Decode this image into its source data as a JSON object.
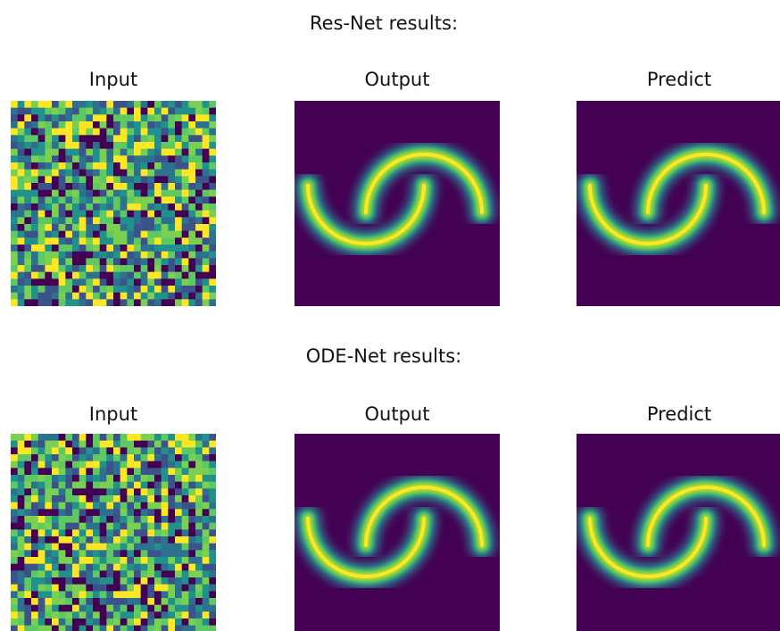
{
  "sections": [
    {
      "title": "Res-Net results:",
      "panels": [
        "Input",
        "Output",
        "Predict"
      ]
    },
    {
      "title": "ODE-Net results:",
      "panels": [
        "Input",
        "Output",
        "Predict"
      ]
    }
  ]
}
